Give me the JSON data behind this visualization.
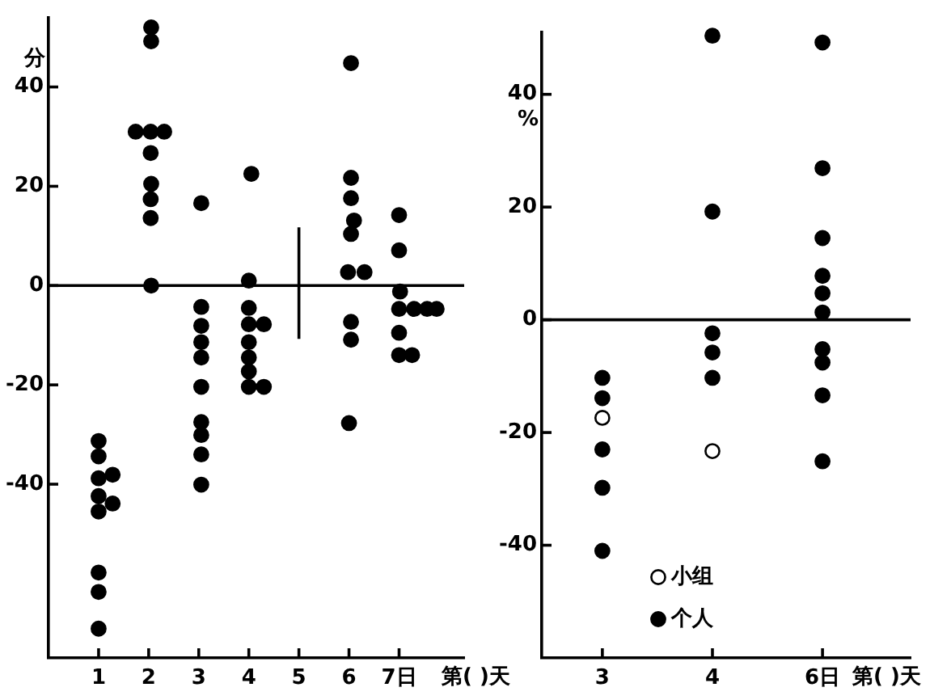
{
  "chart_data": [
    {
      "type": "scatter",
      "xlabel": "第( )天",
      "ylabel": "分",
      "color": "#000000",
      "marker": "circle",
      "grid": false,
      "legend": false,
      "x": [
        1,
        1,
        1,
        1.28,
        1,
        1.28,
        1,
        1,
        1,
        1,
        2.05,
        2.05,
        1.74,
        2.04,
        2.31,
        2.04,
        2.05,
        2.04,
        2.04,
        2.05,
        3.05,
        3.05,
        3.05,
        3.05,
        3.05,
        3.05,
        3.05,
        3.05,
        3.05,
        3.05,
        4.05,
        4,
        4,
        4,
        4.3,
        4,
        4,
        4,
        4,
        4.3,
        6.04,
        6.04,
        6.04,
        6.1,
        6.04,
        5.98,
        6.31,
        6.04,
        6.04,
        6,
        7,
        7,
        7.02,
        7,
        7.3,
        7.56,
        7.75,
        7,
        7,
        7.26
      ],
      "values": [
        -31.3,
        -34.4,
        -38.8,
        -38.1,
        -42.4,
        -43.9,
        -45.5,
        -57.8,
        -61.7,
        -69.1,
        52,
        49.2,
        31,
        31,
        31,
        26.7,
        20.5,
        17.4,
        13.6,
        0,
        16.6,
        -4.3,
        -8.1,
        -11.4,
        -14.5,
        -20.4,
        -27.5,
        -30.1,
        -34,
        -40.1,
        22.5,
        1,
        -4.5,
        -7.8,
        -7.8,
        -11.4,
        -14.5,
        -17.3,
        -20.4,
        -20.4,
        44.8,
        21.7,
        17.6,
        13.1,
        10.4,
        2.7,
        2.7,
        -7.3,
        -10.9,
        -27.7,
        14.2,
        7.1,
        -1.2,
        -4.7,
        -4.7,
        -4.7,
        -4.7,
        -9.5,
        -14,
        -14
      ],
      "xlim": [
        0,
        8.3
      ],
      "xticks": [
        1,
        2,
        3,
        4,
        5,
        6,
        {
          "value": 7,
          "label": "7日"
        }
      ],
      "ylim": [
        -75,
        54
      ],
      "yticks": [
        -40,
        -20,
        0,
        20,
        40
      ],
      "ref_lines": [
        {
          "axis": "y",
          "value": 0
        },
        {
          "axis": "x",
          "value": 5
        }
      ]
    },
    {
      "type": "scatter",
      "xlabel": "第( )天",
      "ylabel": "%",
      "marker": "circle",
      "grid": false,
      "legend": "bottom",
      "categories": [
        "3",
        "4",
        "6日"
      ],
      "series": [
        {
          "name": "小组",
          "color": "#ffffff",
          "x": [
            "3",
            "4"
          ],
          "values": [
            -17.4,
            -23.3
          ]
        },
        {
          "name": "个人",
          "color": "#000000",
          "x": [
            "3",
            "3",
            "3",
            "3",
            "3",
            "4",
            "4",
            "4",
            "4",
            "4",
            "6日",
            "6日",
            "6日",
            "6日",
            "6日",
            "6日",
            "6日",
            "6日",
            "6日",
            "6日"
          ],
          "values": [
            -10.3,
            -13.9,
            -23,
            -29.8,
            -41,
            50.4,
            19.2,
            -2.4,
            -5.8,
            -10.3,
            49.2,
            26.9,
            14.5,
            7.8,
            4.7,
            1.3,
            -5.2,
            -7.6,
            -13.4,
            -25.1
          ]
        }
      ],
      "ylim": [
        -60,
        51
      ],
      "yticks": [
        -40,
        -20,
        0,
        20,
        40
      ],
      "ref_lines": [
        {
          "axis": "y",
          "value": 0
        }
      ]
    }
  ]
}
